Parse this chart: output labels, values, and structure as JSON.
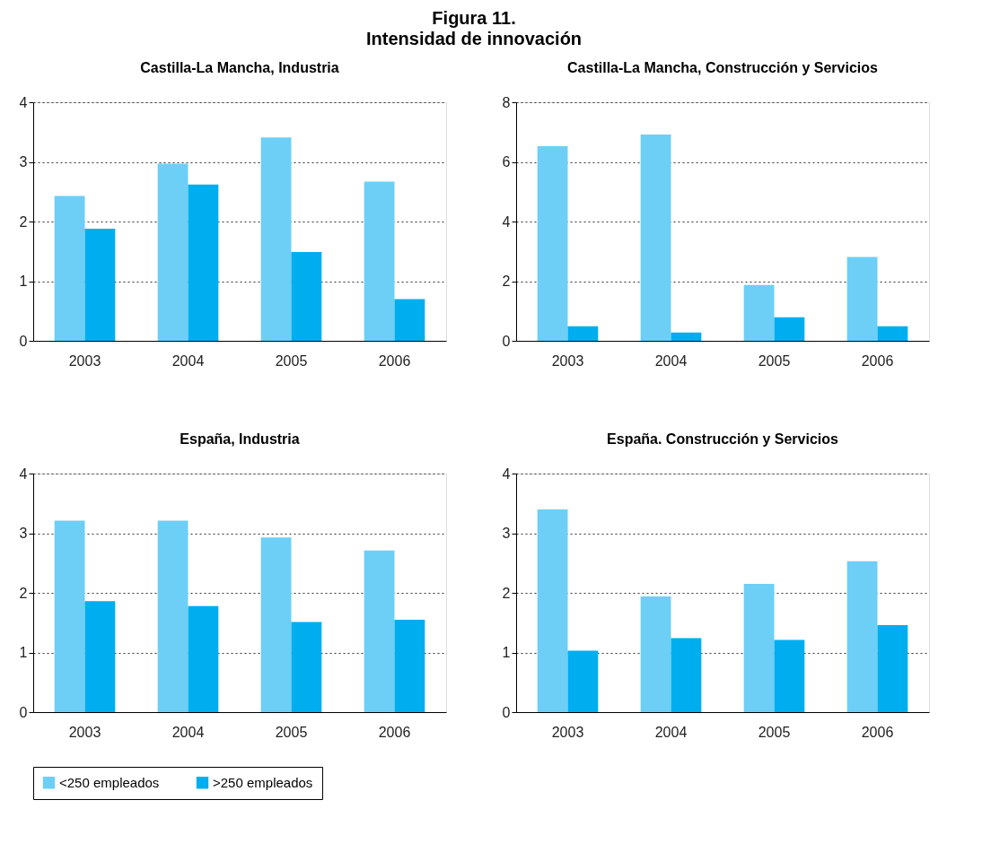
{
  "chart_data": [
    {
      "type": "other",
      "title": "Figura 11.",
      "subtitle": "Intensidad de innovación"
    },
    {
      "type": "bar",
      "title": "Castilla-La Mancha, Industria",
      "categories": [
        "2003",
        "2004",
        "2005",
        "2006"
      ],
      "ylim": [
        0,
        4
      ],
      "yticks": [
        0,
        1,
        2,
        3,
        4
      ],
      "grid": "y",
      "legend": "bottom",
      "series": [
        {
          "name": "<250 empleados",
          "color": "#6dcff6",
          "values": [
            2.43,
            2.97,
            3.41,
            2.67
          ]
        },
        {
          "name": ">250 empleados",
          "color": "#00aeef",
          "values": [
            1.88,
            2.62,
            1.49,
            0.7
          ]
        }
      ]
    },
    {
      "type": "bar",
      "title": "Castilla-La Mancha, Construcción y Servicios",
      "categories": [
        "2003",
        "2004",
        "2005",
        "2006"
      ],
      "ylim": [
        0,
        8
      ],
      "yticks": [
        0,
        2,
        4,
        6,
        8
      ],
      "grid": "y",
      "legend": "bottom",
      "series": [
        {
          "name": "<250 empleados",
          "color": "#6dcff6",
          "values": [
            6.53,
            6.92,
            1.87,
            2.81
          ]
        },
        {
          "name": ">250 empleados",
          "color": "#00aeef",
          "values": [
            0.49,
            0.28,
            0.79,
            0.49
          ]
        }
      ]
    },
    {
      "type": "bar",
      "title": "España, Industria",
      "categories": [
        "2003",
        "2004",
        "2005",
        "2006"
      ],
      "ylim": [
        0,
        4
      ],
      "yticks": [
        0,
        1,
        2,
        3,
        4
      ],
      "grid": "y",
      "legend": "bottom",
      "series": [
        {
          "name": "<250 empleados",
          "color": "#6dcff6",
          "values": [
            3.21,
            3.21,
            2.93,
            2.71
          ]
        },
        {
          "name": ">250 empleados",
          "color": "#00aeef",
          "values": [
            1.86,
            1.78,
            1.51,
            1.55
          ]
        }
      ]
    },
    {
      "type": "bar",
      "title": "España. Construcción  y Servicios",
      "categories": [
        "2003",
        "2004",
        "2005",
        "2006"
      ],
      "ylim": [
        0,
        4
      ],
      "yticks": [
        0,
        1,
        2,
        3,
        4
      ],
      "grid": "y",
      "legend": "bottom",
      "series": [
        {
          "name": "<250 empleados",
          "color": "#6dcff6",
          "values": [
            3.4,
            1.94,
            2.15,
            2.53
          ]
        },
        {
          "name": ">250 empleados",
          "color": "#00aeef",
          "values": [
            1.03,
            1.24,
            1.21,
            1.46
          ]
        }
      ]
    }
  ]
}
